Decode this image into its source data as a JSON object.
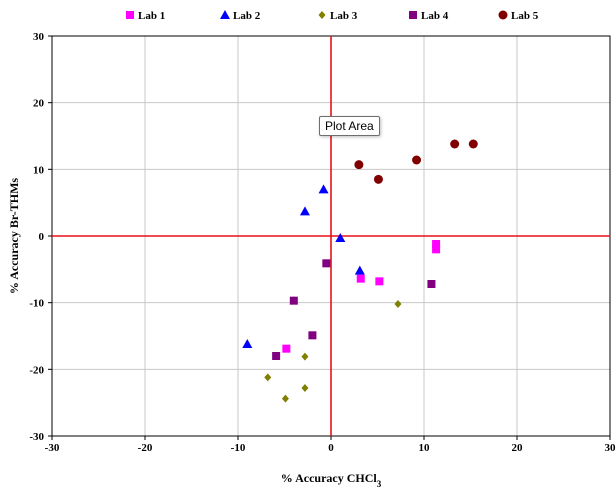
{
  "chart_data": {
    "type": "scatter",
    "xlabel": "% Accuracy CHCl",
    "xlabel_sub": "3",
    "ylabel": "% Accuracy Br-THMs",
    "xlim": [
      -30,
      30
    ],
    "ylim": [
      -30,
      30
    ],
    "x_ticks": [
      -30,
      -20,
      -10,
      0,
      10,
      20,
      30
    ],
    "y_ticks": [
      -30,
      -20,
      -10,
      0,
      10,
      20,
      30
    ],
    "grid": true,
    "legend_position": "top",
    "reference_lines": {
      "x": 0,
      "y": 0,
      "color": "#e8101a"
    },
    "series": [
      {
        "name": "Lab 1",
        "marker": "square",
        "color": "#ff00ff",
        "points": [
          [
            3.2,
            -6.4
          ],
          [
            5.2,
            -6.8
          ],
          [
            11.3,
            -1.2
          ],
          [
            11.3,
            -2.0
          ],
          [
            -4.8,
            -16.9
          ]
        ]
      },
      {
        "name": "Lab 2",
        "marker": "triangle",
        "color": "#0000ff",
        "points": [
          [
            -0.8,
            7.0
          ],
          [
            -2.8,
            3.7
          ],
          [
            1.0,
            -0.3
          ],
          [
            3.1,
            -5.2
          ],
          [
            -9.0,
            -16.2
          ]
        ]
      },
      {
        "name": "Lab 3",
        "marker": "diamond",
        "color": "#808000",
        "points": [
          [
            7.2,
            -10.2
          ],
          [
            -2.8,
            -18.1
          ],
          [
            -6.8,
            -21.2
          ],
          [
            -2.8,
            -22.8
          ],
          [
            -4.9,
            -24.4
          ]
        ]
      },
      {
        "name": "Lab 4",
        "marker": "square",
        "color": "#800080",
        "points": [
          [
            -0.5,
            -4.1
          ],
          [
            -4.0,
            -9.7
          ],
          [
            -2.0,
            -14.9
          ],
          [
            -5.9,
            -18.0
          ],
          [
            10.8,
            -7.2
          ]
        ]
      },
      {
        "name": "Lab 5",
        "marker": "circle",
        "color": "#800000",
        "points": [
          [
            3.0,
            10.7
          ],
          [
            5.1,
            8.5
          ],
          [
            9.2,
            11.4
          ],
          [
            13.3,
            13.8
          ],
          [
            15.3,
            13.8
          ]
        ]
      }
    ]
  },
  "tooltip": {
    "text": "Plot Area"
  }
}
